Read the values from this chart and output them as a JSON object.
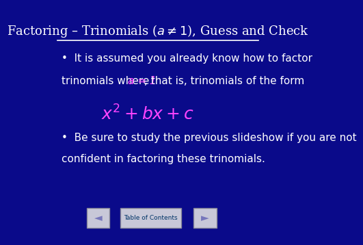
{
  "title": "Factoring – Trinomials ($a \\neq 1$), Guess and Check",
  "bg_color": "#0a0a8a",
  "title_color": "#ffffff",
  "title_fontsize": 13,
  "header_line_color": "#ffffff",
  "formula": "$x^{2}+bx+c$",
  "formula_color": "#ff44ff",
  "text_color": "#ffffff",
  "highlight_color": "#ff44ff",
  "body_fontsize": 11,
  "formula_fontsize": 18,
  "button_bg": "#c8c8d8",
  "button_text_color": "#003366",
  "nav_arrow_color": "#7777bb"
}
